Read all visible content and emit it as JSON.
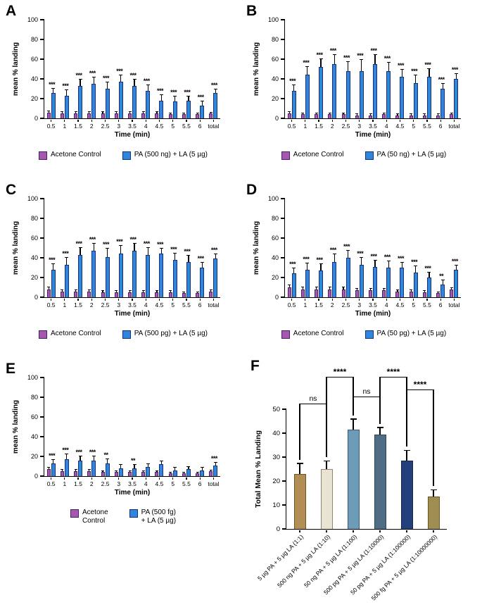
{
  "colors": {
    "control_fill": "#a857ae",
    "control_border": "#45206b",
    "pa_fill": "#2e86dd",
    "pa_border": "#16307a",
    "axis": "#000000",
    "error_bar": "#000000"
  },
  "chart_data": [
    {
      "panel": "A",
      "type": "bar",
      "xlabel": "Time (min)",
      "ylabel": "mean % landing",
      "ylim": [
        0,
        100
      ],
      "yticks": [
        0,
        20,
        40,
        60,
        80,
        100
      ],
      "categories": [
        "0.5",
        "1",
        "1.5",
        "2",
        "2.5",
        "3",
        "3.5",
        "4",
        "4.5",
        "5",
        "5.5",
        "6",
        "total"
      ],
      "series": [
        {
          "name": "Acetone Control",
          "values": [
            6,
            5,
            5,
            5,
            5,
            5,
            5,
            5,
            5,
            4,
            4,
            4,
            5
          ],
          "errors": [
            2,
            2,
            2,
            2,
            2,
            2,
            2,
            2,
            2,
            2,
            2,
            2,
            1.5
          ]
        },
        {
          "name": "PA (500 ng) + LA (5 µg)",
          "values": [
            26,
            23,
            33,
            35,
            30,
            37,
            33,
            28,
            18,
            17,
            18,
            13,
            26
          ],
          "errors": [
            5,
            6,
            7,
            7,
            7,
            7,
            7,
            6,
            6,
            6,
            5,
            5,
            4
          ]
        }
      ],
      "significance": [
        "***",
        "***",
        "***",
        "***",
        "***",
        "***",
        "***",
        "***",
        "***",
        "***",
        "***",
        "***",
        "***"
      ],
      "legend": [
        "Acetone Control",
        "PA (500 ng) + LA (5 µg)"
      ]
    },
    {
      "panel": "B",
      "type": "bar",
      "xlabel": "Time (min)",
      "ylabel": "mean % landing",
      "ylim": [
        0,
        100
      ],
      "yticks": [
        0,
        20,
        40,
        60,
        80,
        100
      ],
      "categories": [
        "0.5",
        "1",
        "1.5",
        "2",
        "2.5",
        "3",
        "3.5",
        "4",
        "4.5",
        "5",
        "5.5",
        "6",
        "total"
      ],
      "series": [
        {
          "name": "Acetone Control",
          "values": [
            5,
            4,
            4,
            4,
            4,
            3,
            3,
            4,
            3,
            3,
            3,
            3,
            4
          ],
          "errors": [
            2,
            2,
            2,
            2,
            2,
            2,
            2,
            2,
            2,
            2,
            2,
            2,
            1.5
          ]
        },
        {
          "name": "PA (50 ng) + LA (5 µg)",
          "values": [
            28,
            44,
            52,
            55,
            48,
            48,
            55,
            48,
            42,
            36,
            42,
            30,
            40
          ],
          "errors": [
            6,
            9,
            9,
            10,
            10,
            12,
            10,
            9,
            8,
            8,
            9,
            6,
            6
          ]
        }
      ],
      "significance": [
        "***",
        "***",
        "***",
        "***",
        "***",
        "***",
        "***",
        "***",
        "***",
        "***",
        "***",
        "***",
        "***"
      ],
      "legend": [
        "Acetone Control",
        "PA (50 ng) + LA (5 µg)"
      ]
    },
    {
      "panel": "C",
      "type": "bar",
      "xlabel": "Time (min)",
      "ylabel": "mean % landing",
      "ylim": [
        0,
        100
      ],
      "yticks": [
        0,
        20,
        40,
        60,
        80,
        100
      ],
      "categories": [
        "0.5",
        "1",
        "1.5",
        "2",
        "2.5",
        "3",
        "3.5",
        "4",
        "4.5",
        "5",
        "5.5",
        "6",
        "total"
      ],
      "series": [
        {
          "name": "Acetone Control",
          "values": [
            8,
            6,
            6,
            6,
            5,
            5,
            5,
            5,
            5,
            5,
            4,
            4,
            6
          ],
          "errors": [
            3,
            2,
            2,
            2,
            2,
            2,
            2,
            2,
            2,
            2,
            2,
            2,
            2
          ]
        },
        {
          "name": "PA (500 pg) + LA (5 µg)",
          "values": [
            28,
            33,
            43,
            47,
            41,
            44,
            47,
            43,
            44,
            38,
            36,
            30,
            39
          ],
          "errors": [
            6,
            8,
            8,
            8,
            9,
            9,
            8,
            8,
            6,
            7,
            7,
            6,
            5
          ]
        }
      ],
      "significance": [
        "***",
        "***",
        "***",
        "***",
        "***",
        "***",
        "***",
        "***",
        "***",
        "***",
        "***",
        "***",
        "***"
      ],
      "legend": [
        "Acetone Control",
        "PA (500 pg) + LA (5 µg)"
      ]
    },
    {
      "panel": "D",
      "type": "bar",
      "xlabel": "Time (min)",
      "ylabel": "mean % landing",
      "ylim": [
        0,
        100
      ],
      "yticks": [
        0,
        20,
        40,
        60,
        80,
        100
      ],
      "categories": [
        "0.5",
        "1",
        "1.5",
        "2",
        "2.5",
        "3",
        "3.5",
        "4",
        "4.5",
        "5",
        "5.5",
        "6",
        "total"
      ],
      "series": [
        {
          "name": "Acetone Control",
          "values": [
            10,
            8,
            8,
            8,
            8,
            7,
            7,
            7,
            6,
            6,
            5,
            4,
            8
          ],
          "errors": [
            3,
            3,
            3,
            3,
            3,
            2,
            2,
            2,
            2,
            2,
            2,
            2,
            2
          ]
        },
        {
          "name": "PA (50 pg) + LA (5 µg)",
          "values": [
            24,
            28,
            27,
            36,
            40,
            33,
            31,
            30,
            30,
            25,
            20,
            13,
            28
          ],
          "errors": [
            6,
            7,
            7,
            8,
            8,
            8,
            7,
            7,
            6,
            7,
            6,
            5,
            5
          ]
        }
      ],
      "significance": [
        "***",
        "***",
        "***",
        "***",
        "***",
        "***",
        "***",
        "***",
        "***",
        "***",
        "***",
        "**",
        "***"
      ],
      "legend": [
        "Acetone Control",
        "PA (50 pg) + LA (5 µg)"
      ]
    },
    {
      "panel": "E",
      "type": "bar",
      "xlabel": "Time (min)",
      "ylabel": "mean % landing",
      "ylim": [
        0,
        100
      ],
      "yticks": [
        0,
        20,
        40,
        60,
        80,
        100
      ],
      "categories": [
        "0.5",
        "1",
        "1.5",
        "2",
        "2.5",
        "3",
        "3.5",
        "4",
        "4.5",
        "5",
        "5.5",
        "6",
        "total"
      ],
      "series": [
        {
          "name": "Acetone Control",
          "values": [
            7,
            5,
            5,
            5,
            4,
            4,
            4,
            4,
            4,
            3,
            3,
            3,
            5
          ],
          "errors": [
            2.5,
            2,
            2,
            2,
            2,
            2,
            2,
            2,
            2,
            1.5,
            1.5,
            1.5,
            1.5
          ]
        },
        {
          "name": "PA (500 fg) + LA (5 µg)",
          "values": [
            13,
            17,
            16,
            16,
            13,
            8,
            8,
            9,
            12,
            6,
            7,
            6,
            11
          ],
          "errors": [
            4,
            6,
            5,
            5,
            5,
            4,
            4,
            4,
            4,
            3,
            3,
            3,
            3
          ]
        }
      ],
      "significance": [
        "***",
        "***",
        "***",
        "***",
        "**",
        "",
        "**",
        "",
        "",
        "",
        "",
        "",
        "***"
      ],
      "legend": [
        "Acetone\nControl",
        "PA (500 fg)\n+ LA (5 µg)"
      ]
    },
    {
      "panel": "F",
      "type": "bar",
      "xlabel": "",
      "ylabel": "Total Mean % Landing",
      "ylim": [
        0,
        50
      ],
      "yticks": [
        0,
        10,
        20,
        30,
        40,
        50
      ],
      "categories": [
        "5 µg PA + 5 µg LA (1:1)",
        "500 ng PA + 5 µg LA (1:10)",
        "50 ng PA + 5 µg LA (1:100)",
        "500 pg PA + 5 µg LA (1:10000)",
        "50 pg PA + 5 µg LA (1:100000)",
        "500 fg PA + 5 µg LA (1:10000000)"
      ],
      "values": [
        23,
        25,
        41.5,
        39.5,
        28.5,
        13.5
      ],
      "errors": [
        4.5,
        3.5,
        4.5,
        3,
        4.5,
        3
      ],
      "bar_colors": [
        "#b28e55",
        "#e9e3d2",
        "#6d9cb8",
        "#4f6d85",
        "#24407c",
        "#a08d52"
      ],
      "bar_borders": [
        "#6e5526",
        "#8a8574",
        "#365a72",
        "#2c4458",
        "#13244d",
        "#665822"
      ],
      "comparisons": [
        {
          "a": 0,
          "b": 1,
          "label": "ns"
        },
        {
          "a": 1,
          "b": 2,
          "label": "****"
        },
        {
          "a": 2,
          "b": 3,
          "label": "ns"
        },
        {
          "a": 3,
          "b": 4,
          "label": "****"
        },
        {
          "a": 4,
          "b": 5,
          "label": "****"
        }
      ]
    }
  ]
}
